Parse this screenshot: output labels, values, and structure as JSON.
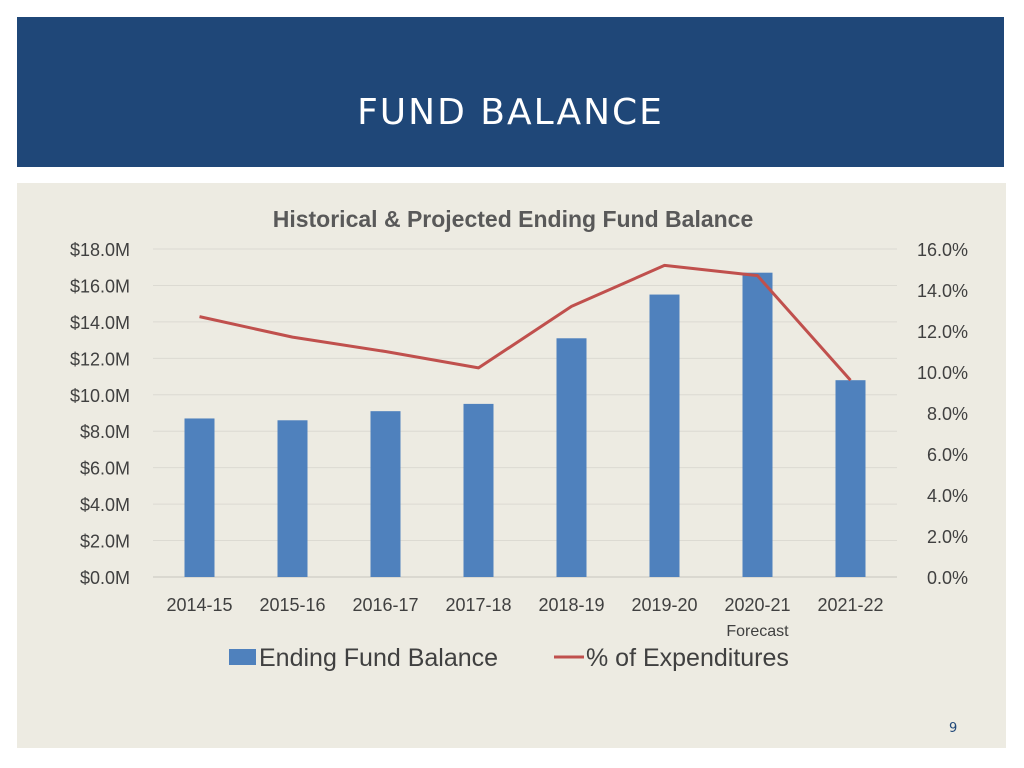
{
  "slide": {
    "title": "FUND BALANCE",
    "page_number": "9"
  },
  "colors": {
    "header_bg": "#1f4778",
    "content_bg": "#edebe2",
    "bar": "#4f81bd",
    "line": "#c0504d"
  },
  "chart_data": {
    "type": "bar",
    "title": "Historical & Projected Ending Fund Balance",
    "categories": [
      "2014-15",
      "2015-16",
      "2016-17",
      "2017-18",
      "2018-19",
      "2019-20",
      "2020-21",
      "2021-22"
    ],
    "category_sublabels": [
      "",
      "",
      "",
      "",
      "",
      "",
      "Forecast",
      ""
    ],
    "series": [
      {
        "name": "Ending Fund Balance",
        "type": "bar",
        "axis": "left",
        "values": [
          8.7,
          8.6,
          9.1,
          9.5,
          13.1,
          15.5,
          16.7,
          10.8
        ]
      },
      {
        "name": "% of Expenditures",
        "type": "line",
        "axis": "right",
        "values": [
          12.7,
          11.7,
          11.0,
          10.2,
          13.2,
          15.2,
          14.7,
          9.6
        ]
      }
    ],
    "y_left": {
      "min": 0,
      "max": 18,
      "step": 2,
      "ticks": [
        "$0.0M",
        "$2.0M",
        "$4.0M",
        "$6.0M",
        "$8.0M",
        "$10.0M",
        "$12.0M",
        "$14.0M",
        "$16.0M",
        "$18.0M"
      ]
    },
    "y_right": {
      "min": 0,
      "max": 16,
      "step": 2,
      "ticks": [
        "0.0%",
        "2.0%",
        "4.0%",
        "6.0%",
        "8.0%",
        "10.0%",
        "12.0%",
        "14.0%",
        "16.0%"
      ]
    },
    "grid": true,
    "legend_position": "bottom"
  }
}
